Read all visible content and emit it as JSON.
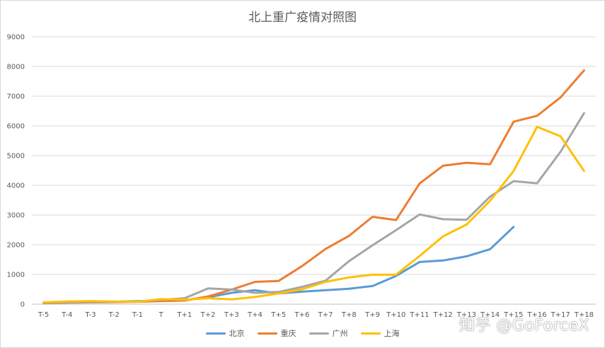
{
  "chart_data": {
    "type": "line",
    "title": "北上重广疫情对照图",
    "xlabel": "",
    "ylabel": "",
    "ylim": [
      0,
      9000
    ],
    "yticks": [
      0,
      1000,
      2000,
      3000,
      4000,
      5000,
      6000,
      7000,
      8000,
      9000
    ],
    "grid": true,
    "legend_position": "bottom",
    "categories": [
      "T-5",
      "T-4",
      "T-3",
      "T-2",
      "T-1",
      "T",
      "T+1",
      "T+2",
      "T+3",
      "T+4",
      "T+5",
      "T+6",
      "T+7",
      "T+8",
      "T+9",
      "T+10",
      "T+11",
      "T+12",
      "T+13",
      "T+14",
      "T+15",
      "T+16",
      "T+17",
      "T+18"
    ],
    "series": [
      {
        "name": "北京",
        "color": "#5b9bd5",
        "values": [
          50,
          60,
          70,
          80,
          100,
          120,
          140,
          230,
          380,
          470,
          360,
          420,
          470,
          520,
          610,
          950,
          1420,
          1470,
          1610,
          1850,
          2600,
          null,
          null,
          null
        ]
      },
      {
        "name": "重庆",
        "color": "#ed7d31",
        "values": [
          30,
          50,
          60,
          70,
          80,
          100,
          120,
          260,
          490,
          750,
          780,
          1280,
          1860,
          2300,
          2940,
          2830,
          4060,
          4660,
          4760,
          4710,
          6140,
          6340,
          6960,
          7870
        ]
      },
      {
        "name": "广州",
        "color": "#a5a5a5",
        "values": [
          40,
          60,
          70,
          80,
          90,
          140,
          200,
          530,
          490,
          380,
          410,
          580,
          790,
          1450,
          1980,
          2490,
          3020,
          2860,
          2840,
          3620,
          4140,
          4070,
          5130,
          6430
        ]
      },
      {
        "name": "上海",
        "color": "#ffc000",
        "values": [
          60,
          90,
          100,
          90,
          80,
          170,
          150,
          200,
          160,
          240,
          360,
          500,
          750,
          900,
          990,
          990,
          1620,
          2280,
          2680,
          3480,
          4480,
          5970,
          5650,
          4480
        ]
      }
    ]
  },
  "watermark": "知乎 @GoForceX"
}
